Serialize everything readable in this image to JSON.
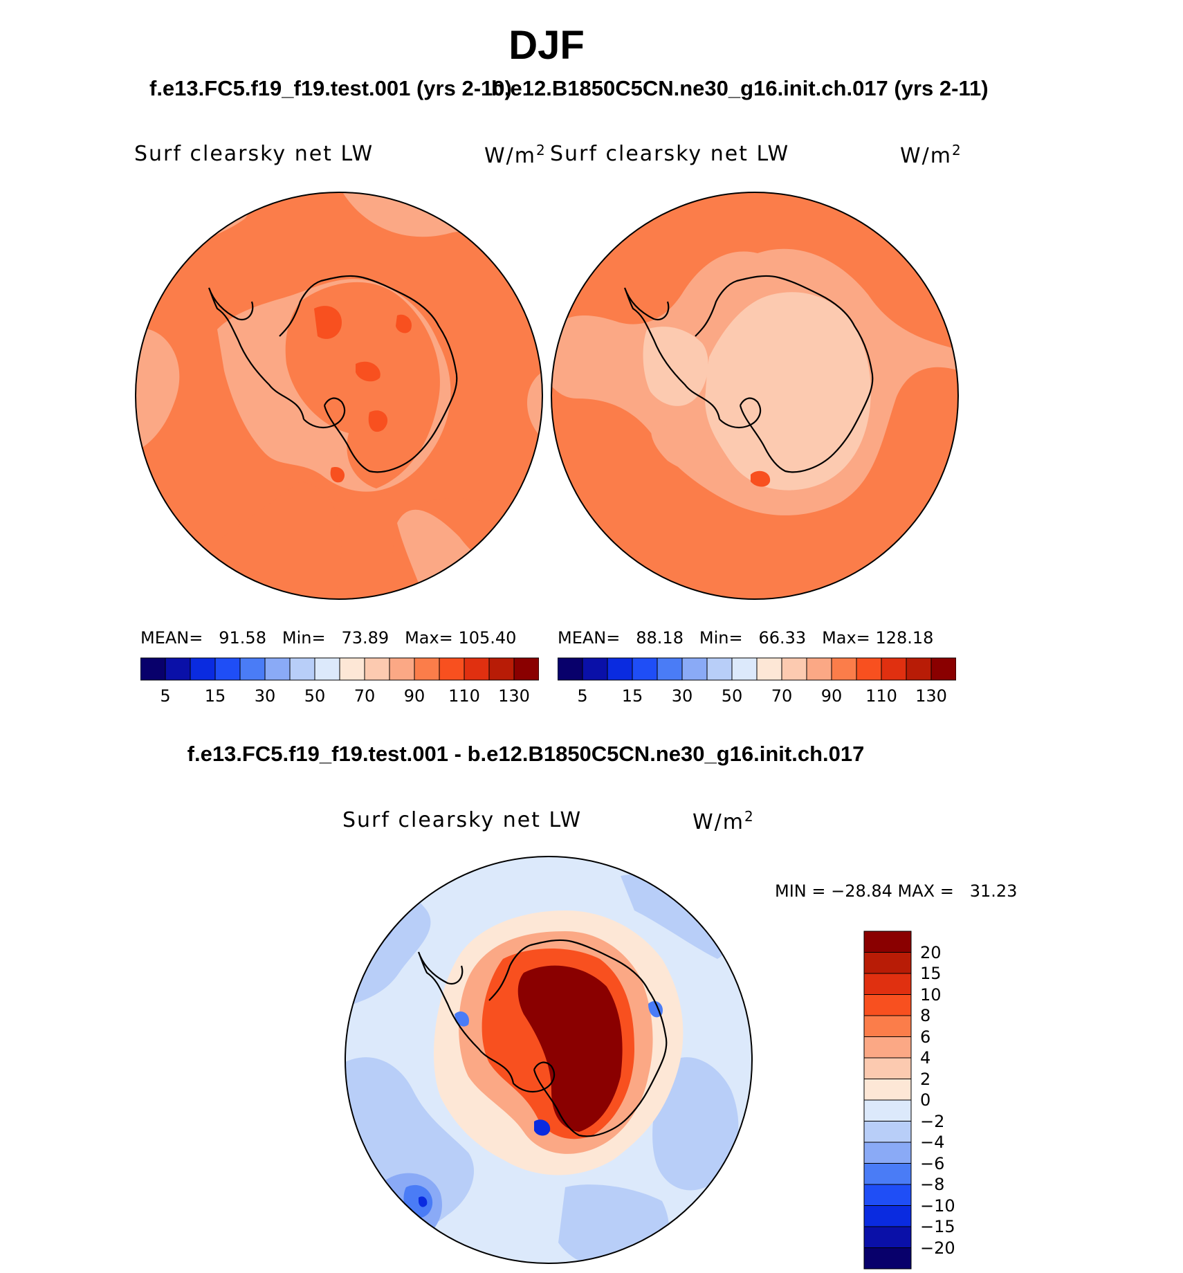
{
  "figure": {
    "season": "DJF",
    "case_left_title": "f.e13.FC5.f19_f19.test.001 (yrs 2-10)",
    "case_right_title": "b.e12.B1850C5CN.ne30_g16.init.ch.017 (yrs 2-11)",
    "diff_title": "f.e13.FC5.f19_f19.test.001 - b.e12.B1850C5CN.ne30_g16.init.ch.017"
  },
  "panels": {
    "left": {
      "variable": "Surf clearsky net LW",
      "units": "W/m",
      "units_sup": "2",
      "mean_label": "MEAN=",
      "mean": "91.58",
      "min_label": "Min=",
      "min": "73.89",
      "max_label": "Max=",
      "max": "105.40"
    },
    "right": {
      "variable": "Surf clearsky net LW",
      "units": "W/m",
      "units_sup": "2",
      "mean_label": "MEAN=",
      "mean": "88.18",
      "min_label": "Min=",
      "min": "66.33",
      "max_label": "Max=",
      "max": "128.18"
    },
    "diff": {
      "variable": "Surf clearsky net LW",
      "units": "W/m",
      "units_sup": "2",
      "minmax": "MIN = −28.84 MAX =   31.23"
    }
  },
  "colorbar_abs": {
    "colors": [
      "#08006b",
      "#0a10a8",
      "#0a2be0",
      "#1f4ef6",
      "#4a7cf6",
      "#8aaaf6",
      "#b8cef8",
      "#dce9fb",
      "#fde7d6",
      "#fccab0",
      "#fba885",
      "#fb7d4a",
      "#f8501f",
      "#e03010",
      "#b81c06",
      "#8a0000"
    ],
    "ticks": [
      "5",
      "15",
      "30",
      "50",
      "70",
      "90",
      "110",
      "130"
    ]
  },
  "colorbar_diff": {
    "colors": [
      "#8a0000",
      "#b81c06",
      "#e03010",
      "#f8501f",
      "#fb7d4a",
      "#fba885",
      "#fccab0",
      "#fde7d6",
      "#dce9fb",
      "#b8cef8",
      "#8aaaf6",
      "#4a7cf6",
      "#1f4ef6",
      "#0a2be0",
      "#0a10a8",
      "#08006b"
    ],
    "ticks": [
      "20",
      "15",
      "10",
      "8",
      "6",
      "4",
      "2",
      "0",
      "−2",
      "−4",
      "−6",
      "−8",
      "−10",
      "−15",
      "−20"
    ]
  },
  "map_colors": {
    "ocean_orange": "#fb7d4a",
    "light_orange": "#fba885",
    "pale": "#fccab0",
    "red": "#f8501f",
    "dark_red": "#8a0000",
    "mid_red": "#b81c06",
    "red2": "#e03010",
    "pale_blue": "#dce9fb",
    "light_blue": "#b8cef8",
    "mid_blue": "#8aaaf6",
    "blue": "#4a7cf6",
    "deep_blue": "#0a2be0"
  }
}
